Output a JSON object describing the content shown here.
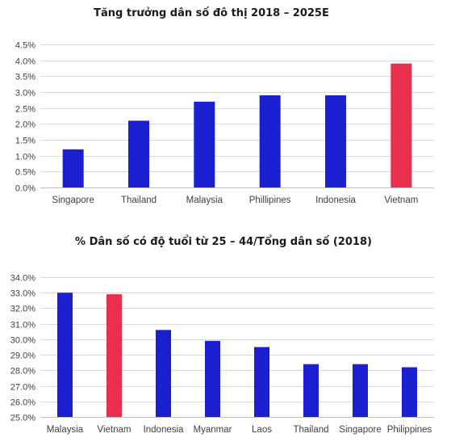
{
  "chart_data": [
    {
      "type": "bar",
      "title": "Tăng trưởng dân số đô thị 2018 – 2025E",
      "xlabel": "",
      "ylabel": "",
      "categories": [
        "Singapore",
        "Thailand",
        "Malaysia",
        "Phillipines",
        "Indonesia",
        "Vietnam"
      ],
      "values": [
        1.2,
        2.1,
        2.7,
        2.9,
        2.9,
        3.9
      ],
      "value_unit": "%",
      "ylim": [
        0,
        4.5
      ],
      "yticks": [
        "0.0%",
        "0.5%",
        "1.0%",
        "1.5%",
        "2.0%",
        "2.5%",
        "3.0%",
        "3.5%",
        "4.0%",
        "4.5%"
      ],
      "bar_colors": [
        "#1a1fd0",
        "#1a1fd0",
        "#1a1fd0",
        "#1a1fd0",
        "#1a1fd0",
        "#ea2e4e"
      ],
      "grid": true,
      "legend": "none"
    },
    {
      "type": "bar",
      "title": "% Dân số có độ tuổi từ 25 – 44/Tổng dân số (2018)",
      "xlabel": "",
      "ylabel": "",
      "categories": [
        "Malaysia",
        "Vietnam",
        "Indonesia",
        "Myanmar",
        "Laos",
        "Thailand",
        "Singapore",
        "Philippines"
      ],
      "values": [
        33.0,
        32.9,
        30.6,
        29.9,
        29.5,
        28.4,
        28.4,
        28.2
      ],
      "value_unit": "%",
      "ylim": [
        25,
        34
      ],
      "yticks": [
        "25.0%",
        "26.0%",
        "27.0%",
        "28.0%",
        "29.0%",
        "30.0%",
        "31.0%",
        "32.0%",
        "33.0%",
        "34.0%"
      ],
      "bar_colors": [
        "#1a1fd0",
        "#ea2e4e",
        "#1a1fd0",
        "#1a1fd0",
        "#1a1fd0",
        "#1a1fd0",
        "#1a1fd0",
        "#1a1fd0"
      ],
      "grid": true,
      "legend": "none"
    }
  ]
}
